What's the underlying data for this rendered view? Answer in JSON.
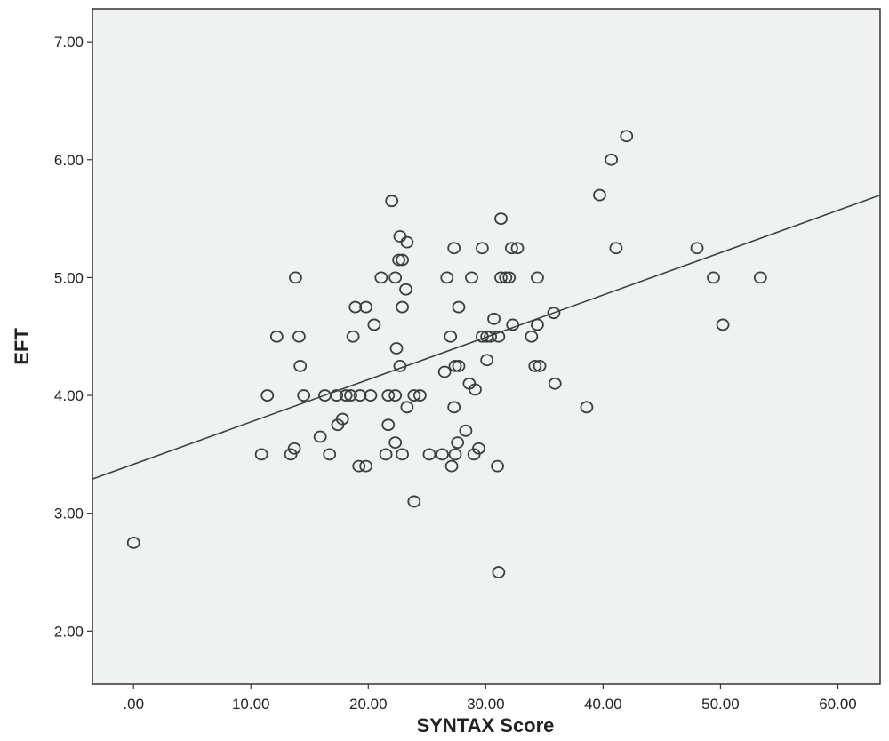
{
  "chart_data": {
    "type": "scatter",
    "title": "",
    "xlabel": "SYNTAX Score",
    "ylabel": "EFT",
    "xlim": [
      -3.5,
      63.6
    ],
    "ylim": [
      1.55,
      7.28
    ],
    "xticks": [
      0,
      10,
      20,
      30,
      40,
      50,
      60
    ],
    "xtick_labels": [
      ".00",
      "10.00",
      "20.00",
      "30.00",
      "40.00",
      "50.00",
      "60.00"
    ],
    "yticks": [
      2,
      3,
      4,
      5,
      6,
      7
    ],
    "ytick_labels": [
      "2.00",
      "3.00",
      "4.00",
      "5.00",
      "6.00",
      "7.00"
    ],
    "grid": false,
    "fit_line": {
      "intercept": 3.416,
      "slope": 0.0359
    },
    "colors": {
      "plot_bg": "#f0f2f2",
      "marker": "#3a3f3f",
      "line": "#3a4444"
    },
    "points": [
      [
        0,
        2.75
      ],
      [
        10.9,
        3.5
      ],
      [
        11.4,
        4.0
      ],
      [
        12.2,
        4.5
      ],
      [
        13.4,
        3.5
      ],
      [
        13.7,
        3.55
      ],
      [
        13.8,
        5.0
      ],
      [
        14.1,
        4.5
      ],
      [
        14.2,
        4.25
      ],
      [
        14.5,
        4.0
      ],
      [
        15.9,
        3.65
      ],
      [
        16.3,
        4.0
      ],
      [
        16.7,
        3.5
      ],
      [
        17.3,
        4.0
      ],
      [
        17.4,
        3.75
      ],
      [
        17.8,
        3.8
      ],
      [
        18.1,
        4.0
      ],
      [
        18.5,
        4.0
      ],
      [
        18.7,
        4.5
      ],
      [
        18.9,
        4.75
      ],
      [
        19.2,
        3.4
      ],
      [
        19.3,
        4.0
      ],
      [
        19.8,
        4.75
      ],
      [
        19.8,
        3.4
      ],
      [
        20.2,
        4.0
      ],
      [
        20.5,
        4.6
      ],
      [
        21.1,
        5.0
      ],
      [
        21.5,
        3.5
      ],
      [
        21.7,
        3.75
      ],
      [
        21.7,
        4.0
      ],
      [
        22.0,
        5.65
      ],
      [
        22.3,
        4.0
      ],
      [
        22.3,
        5.0
      ],
      [
        22.3,
        3.6
      ],
      [
        22.4,
        4.4
      ],
      [
        22.6,
        5.15
      ],
      [
        22.7,
        4.25
      ],
      [
        22.7,
        5.35
      ],
      [
        22.9,
        3.5
      ],
      [
        22.9,
        4.75
      ],
      [
        22.9,
        5.15
      ],
      [
        23.2,
        4.9
      ],
      [
        23.3,
        5.3
      ],
      [
        23.3,
        3.9
      ],
      [
        23.9,
        4.0
      ],
      [
        23.9,
        3.1
      ],
      [
        24.4,
        4.0
      ],
      [
        25.2,
        3.5
      ],
      [
        26.3,
        3.5
      ],
      [
        26.5,
        4.2
      ],
      [
        26.7,
        5.0
      ],
      [
        27.0,
        4.5
      ],
      [
        27.1,
        3.4
      ],
      [
        27.3,
        5.25
      ],
      [
        27.3,
        3.9
      ],
      [
        27.4,
        3.5
      ],
      [
        27.4,
        4.25
      ],
      [
        27.6,
        3.6
      ],
      [
        27.7,
        4.25
      ],
      [
        27.7,
        4.75
      ],
      [
        28.3,
        3.7
      ],
      [
        28.6,
        4.1
      ],
      [
        28.8,
        5.0
      ],
      [
        29.0,
        3.5
      ],
      [
        29.1,
        4.05
      ],
      [
        29.4,
        3.55
      ],
      [
        29.7,
        5.25
      ],
      [
        29.7,
        4.5
      ],
      [
        30.1,
        4.3
      ],
      [
        30.1,
        4.5
      ],
      [
        30.4,
        4.5
      ],
      [
        30.7,
        4.65
      ],
      [
        31.0,
        3.4
      ],
      [
        31.1,
        2.5
      ],
      [
        31.1,
        4.5
      ],
      [
        31.3,
        5.5
      ],
      [
        31.3,
        5.0
      ],
      [
        31.7,
        5.0
      ],
      [
        32.0,
        5.0
      ],
      [
        32.2,
        5.25
      ],
      [
        32.3,
        4.6
      ],
      [
        32.7,
        5.25
      ],
      [
        33.9,
        4.5
      ],
      [
        34.2,
        4.25
      ],
      [
        34.4,
        5.0
      ],
      [
        34.4,
        4.6
      ],
      [
        34.6,
        4.25
      ],
      [
        35.8,
        4.7
      ],
      [
        35.9,
        4.1
      ],
      [
        38.6,
        3.9
      ],
      [
        39.7,
        5.7
      ],
      [
        40.7,
        6.0
      ],
      [
        41.1,
        5.25
      ],
      [
        42.0,
        6.2
      ],
      [
        48.0,
        5.25
      ],
      [
        49.4,
        5.0
      ],
      [
        50.2,
        4.6
      ],
      [
        53.4,
        5.0
      ]
    ]
  }
}
